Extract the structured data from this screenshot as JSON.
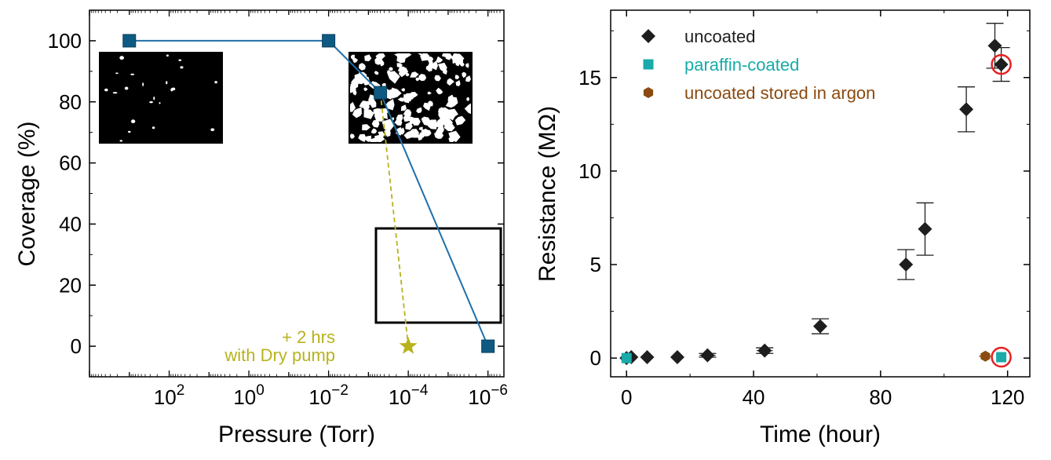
{
  "chart_data": [
    {
      "type": "line",
      "panel": "left",
      "xlabel": "Pressure (Torr)",
      "ylabel": "Coverage (%)",
      "x_scale": "log",
      "x_reversed": true,
      "xlim_log10": [
        4,
        -6.4
      ],
      "ylim": [
        -10,
        110
      ],
      "x_tick_exponents": [
        "2",
        "0",
        "-2",
        "-4",
        "-6"
      ],
      "x_tick_base": "10",
      "y_ticks": [
        "0",
        "20",
        "40",
        "60",
        "80",
        "100"
      ],
      "line_color": "#1f6fa8",
      "marker_color": "#0f5a82",
      "series": [
        {
          "name": "coverage",
          "log10_pressure": [
            3,
            -2,
            -3.3,
            -6
          ],
          "values": [
            100,
            100,
            83,
            0
          ]
        }
      ],
      "dry_pump": {
        "color": "#b8b21e",
        "from_log10_pressure": -3.3,
        "from_value": 83,
        "log10_pressure": -4,
        "value": 0,
        "annotation_line1": "+ 2 hrs",
        "annotation_line2": "with Dry pump"
      },
      "insets": [
        "sparse-coverage-image",
        "dense-coverage-image",
        "full-coverage-image"
      ]
    },
    {
      "type": "scatter",
      "panel": "right",
      "xlabel": "Time (hour)",
      "ylabel": "Resistance (MΩ)",
      "xlim": [
        -5,
        127
      ],
      "ylim": [
        -1,
        18.6
      ],
      "x_ticks": [
        "0",
        "40",
        "80",
        "120"
      ],
      "y_ticks": [
        "0",
        "5",
        "10",
        "15"
      ],
      "series": [
        {
          "name": "uncoated",
          "color": "#1e1e1e",
          "marker": "diamond",
          "x": [
            0,
            1.5,
            6.5,
            16,
            25.5,
            43.5,
            61,
            88,
            94,
            107,
            116,
            118
          ],
          "y": [
            0,
            0.05,
            0.05,
            0.05,
            0.15,
            0.4,
            1.7,
            5,
            6.9,
            13.3,
            16.7,
            15.7
          ],
          "yerr": [
            0,
            0,
            0,
            0,
            0.1,
            0.15,
            0.4,
            0.8,
            1.4,
            1.2,
            1.2,
            0.9
          ],
          "xerr": [
            0,
            0,
            1.5,
            2,
            2.5,
            2.5,
            0,
            0,
            0,
            0,
            0,
            0
          ]
        },
        {
          "name": "paraffin-coated",
          "color": "#19aaaa",
          "marker": "square",
          "x": [
            0,
            118
          ],
          "y": [
            0,
            0.05
          ]
        },
        {
          "name": "uncoated stored in argon",
          "color": "#8a4a10",
          "marker": "hexagon",
          "x": [
            113
          ],
          "y": [
            0.1
          ],
          "xerr": [
            2
          ]
        }
      ],
      "highlight_color": "#e52222",
      "highlights": [
        {
          "x": 118,
          "y": 15.7
        },
        {
          "x": 118,
          "y": 0.05
        }
      ],
      "legend_position": "top-left"
    }
  ]
}
